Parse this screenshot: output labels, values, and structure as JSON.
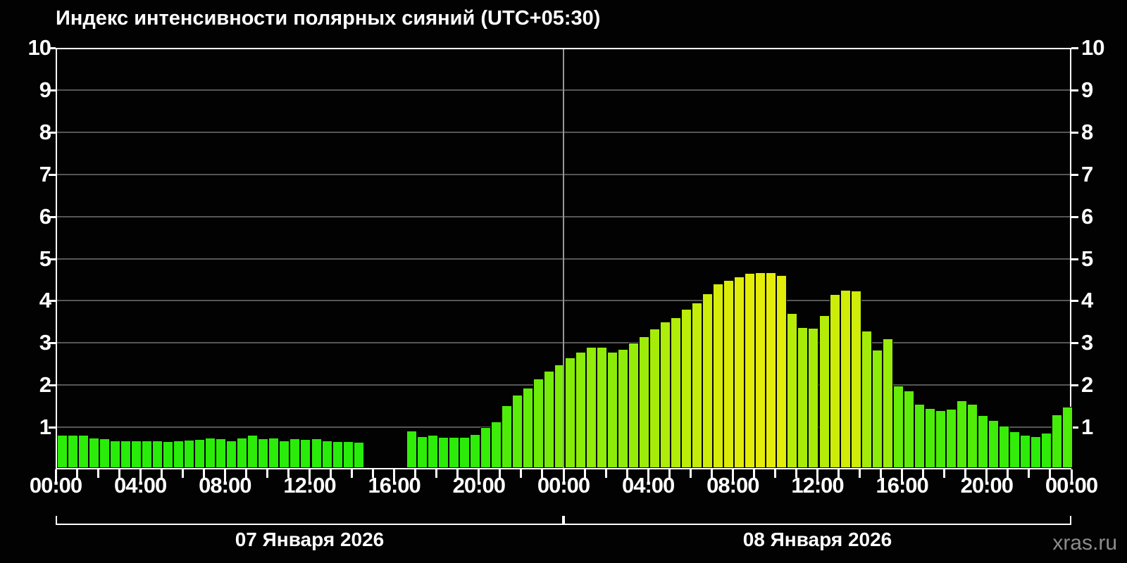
{
  "title": "Индекс интенсивности полярных сияний (UTC+05:30)",
  "watermark": "xras.ru",
  "colors": {
    "background": "#020202",
    "axis": "#ffffff",
    "grid": "#565656",
    "day_divider": "#979797",
    "text": "#ffffff",
    "watermark": "#8c8c8c",
    "bar_low_example": "#2ae317",
    "bar_high_example": "#e9ef06",
    "bar_hue_start": 120,
    "bar_hue_per_unit": 12.5,
    "bar_saturation": "93%",
    "bar_lightness": "48%"
  },
  "y_axis": {
    "min": 0,
    "max": 10,
    "ticks": [
      1,
      2,
      3,
      4,
      5,
      6,
      7,
      8,
      9,
      10
    ],
    "gridline_values": [
      1,
      2,
      3,
      4,
      5,
      6,
      7,
      8,
      9
    ]
  },
  "x_axis": {
    "total_hours": 48,
    "minor_tick_every_hours": 1,
    "major_tick_every_hours": 4,
    "labels": [
      "00:00",
      "04:00",
      "08:00",
      "12:00",
      "16:00",
      "20:00",
      "00:00",
      "04:00",
      "08:00",
      "12:00",
      "16:00",
      "20:00",
      "00:00"
    ]
  },
  "days": [
    {
      "label": "07 Января 2026",
      "start_hour": 0,
      "end_hour": 24
    },
    {
      "label": "08 Января 2026",
      "start_hour": 24,
      "end_hour": 48
    }
  ],
  "chart_data": {
    "type": "bar",
    "title": "Индекс интенсивности полярных сияний (UTC+05:30)",
    "ylabel": "",
    "xlabel": "",
    "ylim": [
      0,
      10
    ],
    "interval_minutes": 30,
    "start": "07 Января 2026 00:00",
    "note": "null = нет данных (разрыв 14:30–16:30 первого дня)",
    "values": [
      0.78,
      0.78,
      0.79,
      0.72,
      0.71,
      0.66,
      0.65,
      0.66,
      0.66,
      0.66,
      0.64,
      0.66,
      0.67,
      0.69,
      0.72,
      0.71,
      0.66,
      0.72,
      0.78,
      0.71,
      0.72,
      0.66,
      0.71,
      0.68,
      0.71,
      0.65,
      0.63,
      0.64,
      0.62,
      null,
      null,
      null,
      null,
      0.88,
      0.76,
      0.78,
      0.74,
      0.73,
      0.73,
      0.8,
      0.97,
      1.11,
      1.48,
      1.73,
      1.91,
      2.12,
      2.3,
      2.45,
      2.63,
      2.76,
      2.88,
      2.87,
      2.76,
      2.83,
      2.98,
      3.12,
      3.3,
      3.48,
      3.58,
      3.78,
      3.93,
      4.14,
      4.37,
      4.46,
      4.54,
      4.63,
      4.65,
      4.65,
      4.57,
      3.67,
      3.34,
      3.33,
      3.62,
      4.12,
      4.22,
      4.2,
      3.25,
      2.8,
      3.08,
      1.95,
      1.84,
      1.52,
      1.42,
      1.37,
      1.41,
      1.6,
      1.52,
      1.26,
      1.13,
      1.0,
      0.87,
      0.78,
      0.75,
      0.83,
      1.27,
      1.45
    ]
  }
}
